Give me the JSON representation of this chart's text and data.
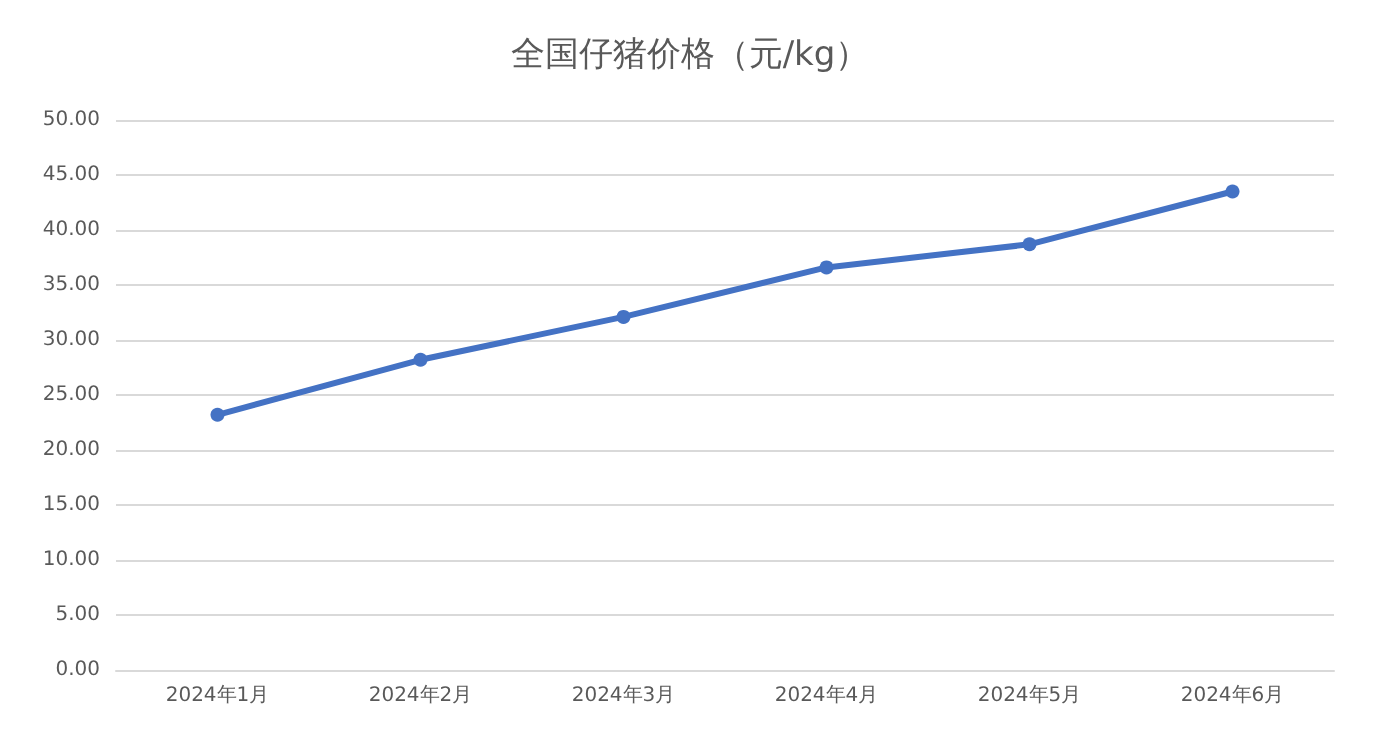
{
  "chart_data": {
    "type": "line",
    "title": "全国仔猪价格（元/kg）",
    "categories": [
      "2024年1月",
      "2024年2月",
      "2024年3月",
      "2024年4月",
      "2024年5月",
      "2024年6月"
    ],
    "series": [
      {
        "color": "#4472c4",
        "values": [
          23.2,
          28.2,
          32.1,
          36.6,
          38.7,
          43.5
        ]
      }
    ],
    "ylim": [
      0,
      50
    ],
    "yticks": [
      {
        "value": 0,
        "label": "0.00"
      },
      {
        "value": 5,
        "label": "5.00"
      },
      {
        "value": 10,
        "label": "10.00"
      },
      {
        "value": 15,
        "label": "15.00"
      },
      {
        "value": 20,
        "label": "20.00"
      },
      {
        "value": 25,
        "label": "25.00"
      },
      {
        "value": 30,
        "label": "30.00"
      },
      {
        "value": 35,
        "label": "35.00"
      },
      {
        "value": 40,
        "label": "40.00"
      },
      {
        "value": 45,
        "label": "45.00"
      },
      {
        "value": 50,
        "label": "50.00"
      }
    ],
    "grid": "y",
    "marker": "circle",
    "line_style": "solid"
  }
}
